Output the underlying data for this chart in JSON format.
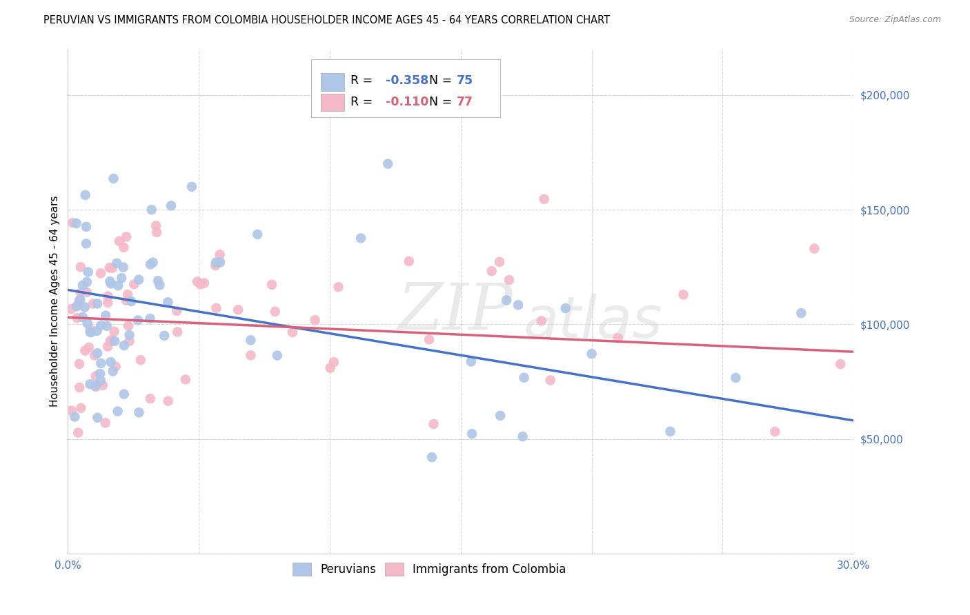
{
  "title": "PERUVIAN VS IMMIGRANTS FROM COLOMBIA HOUSEHOLDER INCOME AGES 45 - 64 YEARS CORRELATION CHART",
  "source": "Source: ZipAtlas.com",
  "ylabel": "Householder Income Ages 45 - 64 years",
  "xlim": [
    0.0,
    0.3
  ],
  "ylim": [
    0,
    220000
  ],
  "blue_R": -0.358,
  "blue_N": 75,
  "pink_R": -0.11,
  "pink_N": 77,
  "blue_color": "#aec6e8",
  "blue_line_color": "#4472c4",
  "pink_color": "#f4b8c8",
  "pink_line_color": "#d9607a",
  "background_color": "#ffffff",
  "grid_color": "#cccccc",
  "watermark_zip": "ZIP",
  "watermark_atlas": "atlas",
  "blue_trendline": [
    0.0,
    0.3,
    115000,
    58000
  ],
  "pink_trendline": [
    0.0,
    0.3,
    103000,
    88000
  ]
}
